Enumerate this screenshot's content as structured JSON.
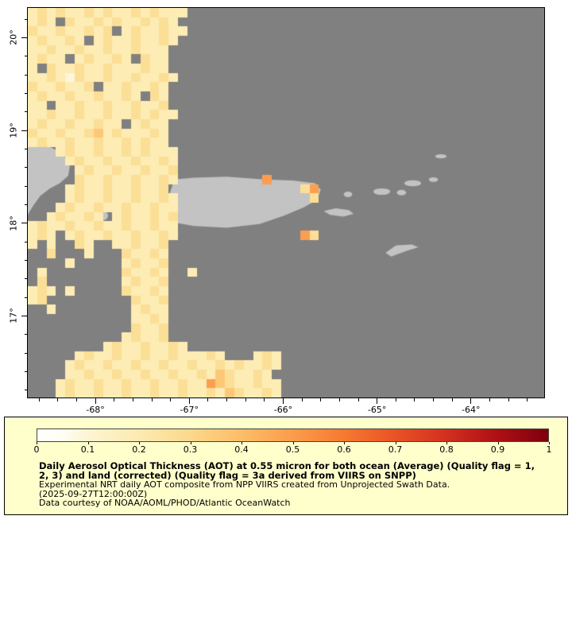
{
  "figure": {
    "map": {
      "background_ocean_color": "#808080",
      "land_color": "#c3c3c3",
      "view": {
        "lon_min": -68.72,
        "lon_max": -63.22,
        "lat_min": 16.12,
        "lat_max": 20.32
      },
      "axes": {
        "lat_ticks": [
          {
            "value": 20,
            "label": "20°"
          },
          {
            "value": 19,
            "label": "19°"
          },
          {
            "value": 18,
            "label": "18°"
          },
          {
            "value": 17,
            "label": "17°"
          }
        ],
        "lon_ticks": [
          {
            "value": -68,
            "label": "-68°"
          },
          {
            "value": -67,
            "label": "-67°"
          },
          {
            "value": -66,
            "label": "-66°"
          },
          {
            "value": -65,
            "label": "-65°"
          },
          {
            "value": -64,
            "label": "-64°"
          }
        ],
        "minor_step_deg": 0.2
      },
      "grid": {
        "cols": 55,
        "rows_count": 42,
        "cell_deg": 0.1,
        "palette": {
          "1": "#fdf6da",
          "2": "#fdecb4",
          "3": "#fcdf96",
          "4": "#fcc878",
          "5": "#fb9e4f",
          "6": "#f5742c"
        },
        "rows": [
          "23232232322323222",
          "232.322323223232",
          "322322323.2322322",
          "232232.232232232",
          "223223223223222",
          "2322.232232.322",
          "2.3223223222322",
          "2232132232232232",
          "3223223.2232232",
          "232232232232.32",
          "22.223223223223",
          "2232232232232322",
          "2322322322.2322",
          "322322342322232",
          "232232232232322",
          "...2322322323222",
          "....232232232232",
          ".....23223223223",
          ".....32232232232.........5",
          "....23223223223..............35",
          "....232232232232..............3",
          "...2322322322322",
          "..232232.2322323",
          "2322322322322322",
          "232.232232232232.............53",
          "2.2..32..223223",
          "..3...2...32232",
          "....2.....23223",
          ".2........32232..2",
          ".3........23223",
          "232.2.....32232",
          "23.........3223",
          "..2........2322",
          "...........2232",
          "...........3223",
          "..........23223",
          "........232232232",
          ".....2322322322322232...232",
          "....23223223223223223232232",
          "....2232232232232232432232",
          "...232232232232232254322322",
          "...232232232232232232432232"
        ]
      },
      "land": {
        "polygons": [
          {
            "name": "hispaniola-east-coast",
            "points": [
              [
                -68.8,
                18.92
              ],
              [
                -68.52,
                18.84
              ],
              [
                -68.36,
                18.76
              ],
              [
                -68.27,
                18.63
              ],
              [
                -68.29,
                18.51
              ],
              [
                -68.38,
                18.43
              ],
              [
                -68.49,
                18.37
              ],
              [
                -68.59,
                18.29
              ],
              [
                -68.66,
                18.19
              ],
              [
                -68.71,
                18.11
              ],
              [
                -68.74,
                18.03
              ],
              [
                -68.8,
                18.0
              ]
            ]
          },
          {
            "name": "puerto-rico",
            "points": [
              [
                -67.16,
                18.47
              ],
              [
                -66.95,
                18.49
              ],
              [
                -66.6,
                18.5
              ],
              [
                -66.2,
                18.47
              ],
              [
                -65.9,
                18.46
              ],
              [
                -65.66,
                18.43
              ],
              [
                -65.6,
                18.36
              ],
              [
                -65.64,
                18.25
              ],
              [
                -65.78,
                18.17
              ],
              [
                -65.99,
                18.08
              ],
              [
                -66.25,
                17.99
              ],
              [
                -66.6,
                17.95
              ],
              [
                -66.95,
                17.97
              ],
              [
                -67.12,
                18.0
              ],
              [
                -67.2,
                18.09
              ],
              [
                -67.23,
                18.25
              ]
            ]
          },
          {
            "name": "vieques",
            "points": [
              [
                -65.57,
                18.13
              ],
              [
                -65.44,
                18.16
              ],
              [
                -65.3,
                18.14
              ],
              [
                -65.25,
                18.1
              ],
              [
                -65.36,
                18.07
              ],
              [
                -65.5,
                18.09
              ]
            ]
          },
          {
            "name": "st-croix",
            "points": [
              [
                -64.91,
                17.68
              ],
              [
                -64.8,
                17.76
              ],
              [
                -64.63,
                17.77
              ],
              [
                -64.56,
                17.74
              ],
              [
                -64.69,
                17.7
              ],
              [
                -64.85,
                17.64
              ]
            ]
          }
        ],
        "ellipses": [
          {
            "name": "mona-island",
            "lon": -67.92,
            "lat": 18.08,
            "rlon": 0.055,
            "rlat": 0.05
          },
          {
            "name": "culebra",
            "lon": -65.31,
            "lat": 18.31,
            "rlon": 0.045,
            "rlat": 0.03
          },
          {
            "name": "st-thomas",
            "lon": -64.95,
            "lat": 18.34,
            "rlon": 0.09,
            "rlat": 0.035
          },
          {
            "name": "st-john",
            "lon": -64.74,
            "lat": 18.33,
            "rlon": 0.05,
            "rlat": 0.03
          },
          {
            "name": "tortola",
            "lon": -64.62,
            "lat": 18.43,
            "rlon": 0.09,
            "rlat": 0.032
          },
          {
            "name": "virgin-gorda",
            "lon": -64.4,
            "lat": 18.47,
            "rlon": 0.05,
            "rlat": 0.025
          },
          {
            "name": "anegada",
            "lon": -64.32,
            "lat": 18.72,
            "rlon": 0.06,
            "rlat": 0.022
          }
        ]
      }
    },
    "legend": {
      "background": "#ffffcc",
      "colorbar": {
        "min": 0,
        "max": 1,
        "stops": [
          [
            0,
            "#ffffff"
          ],
          [
            0.05,
            "#fffdf3"
          ],
          [
            0.1,
            "#fdf4d2"
          ],
          [
            0.2,
            "#fdeab0"
          ],
          [
            0.3,
            "#fcd88c"
          ],
          [
            0.4,
            "#fcbd68"
          ],
          [
            0.5,
            "#fb9c4c"
          ],
          [
            0.6,
            "#f67932"
          ],
          [
            0.7,
            "#e85326"
          ],
          [
            0.8,
            "#d2301e"
          ],
          [
            0.9,
            "#ad1016"
          ],
          [
            1,
            "#7e000c"
          ]
        ],
        "tick_labels": [
          "0",
          "0.1",
          "0.2",
          "0.3",
          "0.4",
          "0.5",
          "0.6",
          "0.7",
          "0.8",
          "0.9",
          "1"
        ]
      },
      "title_line1": "Daily Aerosol Optical Thickness (AOT) at 0.55 micron for both ocean (Average) (Quality flag = 1,",
      "title_line2": "2, 3) and land (corrected) (Quality flag = 3a derived from VIIRS on SNPP)",
      "line3": "Experimental NRT daily AOT composite from NPP VIIRS created from Unprojected Swath Data.",
      "line4": "(2025-09-27T12:00:00Z)",
      "line5": "Data courtesy of NOAA/AOML/PHOD/Atlantic OceanWatch"
    }
  }
}
